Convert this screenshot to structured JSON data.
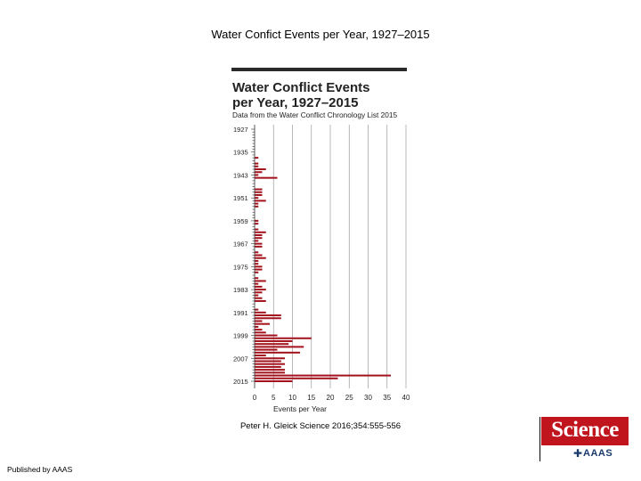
{
  "slide": {
    "title": "Water Confict Events per Year, 1927–2015",
    "citation": "Peter H. Gleick Science 2016;354:555-556",
    "published": "Published by AAAS"
  },
  "logo": {
    "name": "Science",
    "sub": "AAAS",
    "mark_icon": "aaas-emblem-icon"
  },
  "chart_data": {
    "type": "bar",
    "orientation": "horizontal",
    "title": "Water Conflict Events per Year, 1927–2015",
    "subtitle": "Data from the Water Conflict Chronology List 2015",
    "xlabel": "Events per Year",
    "ylabel": "",
    "xlim": [
      0,
      40
    ],
    "xticks": [
      0,
      5,
      10,
      15,
      20,
      25,
      30,
      35,
      40
    ],
    "yticks": [
      1927,
      1935,
      1943,
      1951,
      1959,
      1967,
      1975,
      1983,
      1991,
      1999,
      2007,
      2015
    ],
    "grid": "vertical",
    "bar_color": "#a3121c",
    "categories": [
      1927,
      1928,
      1929,
      1930,
      1931,
      1932,
      1933,
      1934,
      1935,
      1936,
      1937,
      1938,
      1939,
      1940,
      1941,
      1942,
      1943,
      1944,
      1945,
      1946,
      1947,
      1948,
      1949,
      1950,
      1951,
      1952,
      1953,
      1954,
      1955,
      1956,
      1957,
      1958,
      1959,
      1960,
      1961,
      1962,
      1963,
      1964,
      1965,
      1966,
      1967,
      1968,
      1969,
      1970,
      1971,
      1972,
      1973,
      1974,
      1975,
      1976,
      1977,
      1978,
      1979,
      1980,
      1981,
      1982,
      1983,
      1984,
      1985,
      1986,
      1987,
      1988,
      1989,
      1990,
      1991,
      1992,
      1993,
      1994,
      1995,
      1996,
      1997,
      1998,
      1999,
      2000,
      2001,
      2002,
      2003,
      2004,
      2005,
      2006,
      2007,
      2008,
      2009,
      2010,
      2011,
      2012,
      2013,
      2014,
      2015
    ],
    "values": [
      0,
      0,
      0,
      0,
      0,
      0,
      0,
      0,
      0,
      0,
      1,
      0,
      1,
      1,
      3,
      2,
      1,
      6,
      0,
      0,
      0,
      2,
      2,
      2,
      1,
      3,
      1,
      1,
      0,
      0,
      0,
      0,
      1,
      1,
      0,
      1,
      3,
      2,
      2,
      1,
      2,
      2,
      0,
      1,
      2,
      3,
      1,
      1,
      2,
      2,
      1,
      0,
      1,
      3,
      1,
      2,
      3,
      2,
      1,
      2,
      3,
      0,
      0,
      1,
      3,
      7,
      7,
      2,
      4,
      1,
      2,
      3,
      6,
      15,
      10,
      9,
      13,
      6,
      12,
      3,
      8,
      7,
      8,
      7,
      8,
      8,
      36,
      22,
      10
    ]
  }
}
